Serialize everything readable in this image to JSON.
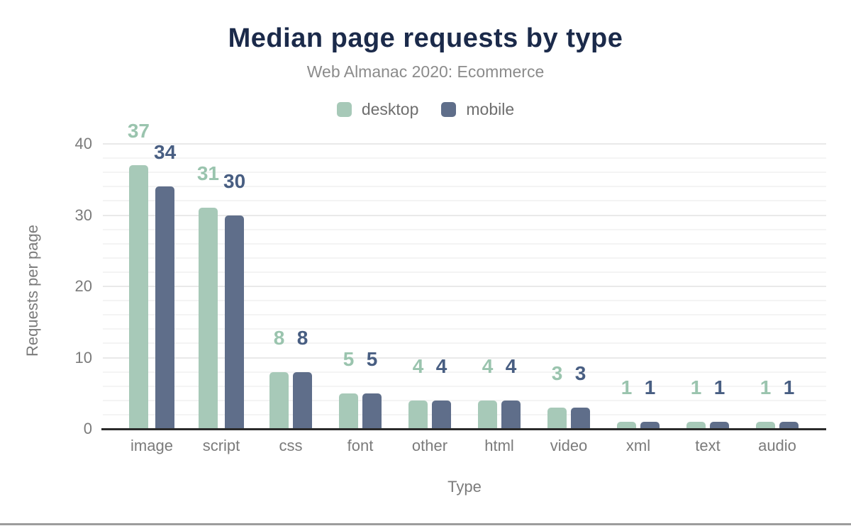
{
  "header": {
    "title": "Median page requests by type",
    "subtitle": "Web Almanac 2020: Ecommerce"
  },
  "chart_data": {
    "type": "bar",
    "title": "Median page requests by type",
    "subtitle": "Web Almanac 2020: Ecommerce",
    "categories": [
      "image",
      "script",
      "css",
      "font",
      "other",
      "html",
      "video",
      "xml",
      "text",
      "audio"
    ],
    "series": [
      {
        "name": "desktop",
        "values": [
          37,
          31,
          8,
          5,
          4,
          4,
          3,
          1,
          1,
          1
        ],
        "bar_color": "#a7c9b8",
        "label_color": "#9ac4ae"
      },
      {
        "name": "mobile",
        "values": [
          34,
          30,
          8,
          5,
          4,
          4,
          3,
          1,
          1,
          1
        ],
        "bar_color": "#5f6e8a",
        "label_color": "#485e82"
      }
    ],
    "xlabel": "Type",
    "ylabel": "Requests per page",
    "ylim": [
      0,
      40
    ],
    "yticks": [
      0,
      10,
      20,
      30,
      40
    ],
    "grid_minor_step": 2,
    "grid_major_step": 10,
    "legend_position": "top",
    "grid": "horizontal"
  }
}
